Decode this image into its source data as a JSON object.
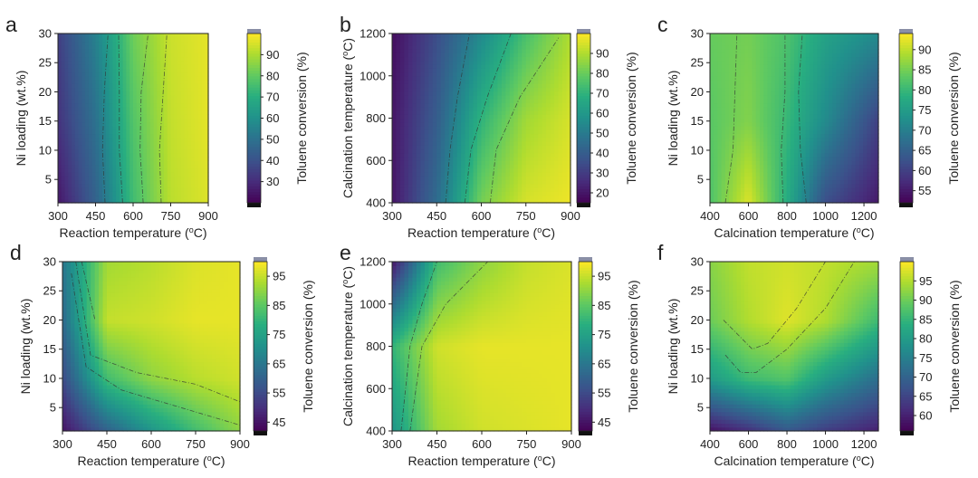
{
  "chart_data": [
    {
      "panel": "a",
      "type": "heatmap",
      "xlabel": "Reaction temperature (°C)",
      "ylabel": "Ni loading (wt.%)",
      "cbar_label": "Toluene conversion (%)",
      "xlim": [
        300,
        900
      ],
      "ylim": [
        1,
        30
      ],
      "xticks": [
        300,
        450,
        600,
        750,
        900
      ],
      "yticks": [
        5,
        10,
        15,
        20,
        25,
        30
      ],
      "cbar_range": [
        20,
        100
      ],
      "cbar_ticks": [
        30,
        40,
        50,
        60,
        70,
        80,
        90
      ],
      "x": [
        300,
        450,
        600,
        750,
        900
      ],
      "y": [
        1,
        15,
        30
      ],
      "values": [
        [
          25,
          45,
          75,
          92,
          96
        ],
        [
          32,
          50,
          78,
          93,
          97
        ],
        [
          35,
          55,
          82,
          94,
          97
        ]
      ],
      "contours": [
        {
          "x": [
            488,
            478,
            485,
            500
          ],
          "y": [
            1,
            10,
            20,
            30
          ]
        },
        {
          "x": [
            558,
            545,
            545,
            542
          ],
          "y": [
            1,
            10,
            20,
            30
          ]
        },
        {
          "x": [
            640,
            628,
            632,
            660
          ],
          "y": [
            1,
            10,
            20,
            30
          ]
        },
        {
          "x": [
            712,
            705,
            720,
            735
          ],
          "y": [
            1,
            10,
            20,
            30
          ]
        }
      ]
    },
    {
      "panel": "b",
      "type": "heatmap",
      "xlabel": "Reaction temperature (°C)",
      "ylabel": "Calcination temperature (°C)",
      "cbar_label": "Toluene conversion (%)",
      "xlim": [
        300,
        900
      ],
      "ylim": [
        400,
        1200
      ],
      "xticks": [
        300,
        450,
        600,
        750,
        900
      ],
      "yticks": [
        400,
        600,
        800,
        1000,
        1200
      ],
      "cbar_range": [
        15,
        100
      ],
      "cbar_ticks": [
        20,
        30,
        40,
        50,
        60,
        70,
        80,
        90
      ],
      "x": [
        300,
        450,
        600,
        750,
        900
      ],
      "y": [
        400,
        800,
        1200
      ],
      "values": [
        [
          20,
          45,
          82,
          95,
          98
        ],
        [
          20,
          40,
          70,
          88,
          95
        ],
        [
          18,
          35,
          55,
          75,
          90
        ]
      ],
      "contours": [
        {
          "x": [
            480,
            495,
            520,
            560
          ],
          "y": [
            400,
            650,
            900,
            1200
          ]
        },
        {
          "x": [
            545,
            565,
            620,
            700
          ],
          "y": [
            400,
            650,
            900,
            1200
          ]
        },
        {
          "x": [
            630,
            650,
            730,
            860
          ],
          "y": [
            400,
            650,
            900,
            1180
          ]
        }
      ]
    },
    {
      "panel": "c",
      "type": "heatmap",
      "xlabel": "Calcination temperature (°C)",
      "ylabel": "Ni loading (wt.%)",
      "cbar_label": "Toluene conversion (%)",
      "xlim": [
        400,
        1275
      ],
      "ylim": [
        1,
        30
      ],
      "xticks": [
        400,
        600,
        800,
        1000,
        1200
      ],
      "yticks": [
        5,
        10,
        15,
        20,
        25,
        30
      ],
      "cbar_range": [
        52,
        94
      ],
      "cbar_ticks": [
        55,
        60,
        65,
        70,
        75,
        80,
        85,
        90
      ],
      "x": [
        400,
        600,
        800,
        1000,
        1275
      ],
      "y": [
        1,
        15,
        30
      ],
      "values": [
        [
          82,
          92,
          78,
          62,
          55
        ],
        [
          83,
          86,
          80,
          72,
          60
        ],
        [
          84,
          85,
          82,
          76,
          72
        ]
      ],
      "contours": [
        {
          "x": [
            480,
            520,
            530,
            540
          ],
          "y": [
            1,
            10,
            20,
            30
          ]
        },
        {
          "x": [
            780,
            770,
            790,
            790
          ],
          "y": [
            1,
            10,
            20,
            30
          ]
        },
        {
          "x": [
            900,
            870,
            860,
            880
          ],
          "y": [
            1,
            10,
            20,
            30
          ]
        }
      ]
    },
    {
      "panel": "d",
      "type": "heatmap",
      "xlabel": "Reaction temperature (°C)",
      "ylabel": "Ni loading (wt.%)",
      "cbar_label": "Toluene conversion (%)",
      "xlim": [
        300,
        900
      ],
      "ylim": [
        1,
        30
      ],
      "xticks": [
        300,
        450,
        600,
        750,
        900
      ],
      "yticks": [
        5,
        10,
        15,
        20,
        25,
        30
      ],
      "cbar_range": [
        42,
        100
      ],
      "cbar_ticks": [
        45,
        55,
        65,
        75,
        85,
        95
      ],
      "x": [
        300,
        450,
        600,
        750,
        900
      ],
      "y": [
        1,
        10,
        20,
        30
      ],
      "values": [
        [
          45,
          60,
          72,
          82,
          90
        ],
        [
          55,
          82,
          90,
          94,
          96
        ],
        [
          62,
          95,
          96,
          98,
          98
        ],
        [
          65,
          92,
          94,
          97,
          98
        ]
      ],
      "contours": [
        {
          "x": [
            330,
            380,
            500,
            700,
            900
          ],
          "y": [
            28,
            12,
            8,
            5,
            2
          ]
        },
        {
          "x": [
            345,
            395,
            550,
            750,
            900
          ],
          "y": [
            30,
            14,
            11,
            9,
            6
          ]
        },
        {
          "x": [
            365,
            410
          ],
          "y": [
            30,
            20
          ]
        }
      ]
    },
    {
      "panel": "e",
      "type": "heatmap",
      "xlabel": "Reaction temperature (°C)",
      "ylabel": "Calcination temperature (°C)",
      "cbar_label": "Toluene conversion (%)",
      "xlim": [
        300,
        900
      ],
      "ylim": [
        400,
        1200
      ],
      "xticks": [
        300,
        450,
        600,
        750,
        900
      ],
      "yticks": [
        400,
        600,
        800,
        1000,
        1200
      ],
      "cbar_range": [
        42,
        100
      ],
      "cbar_ticks": [
        45,
        55,
        65,
        75,
        85,
        95
      ],
      "x": [
        300,
        450,
        600,
        750,
        900
      ],
      "y": [
        400,
        800,
        1200
      ],
      "values": [
        [
          72,
          92,
          96,
          97,
          98
        ],
        [
          80,
          96,
          98,
          98,
          98
        ],
        [
          45,
          82,
          90,
          95,
          97
        ]
      ],
      "contours": [
        {
          "x": [
            330,
            345,
            360,
            400,
            450
          ],
          "y": [
            400,
            600,
            800,
            1000,
            1200
          ]
        },
        {
          "x": [
            360,
            380,
            400,
            480,
            620
          ],
          "y": [
            400,
            600,
            800,
            1000,
            1200
          ]
        }
      ]
    },
    {
      "panel": "f",
      "type": "heatmap",
      "xlabel": "Calcination temperature (°C)",
      "ylabel": "Ni loading (wt.%)",
      "cbar_label": "Toluene conversion (%)",
      "xlim": [
        400,
        1275
      ],
      "ylim": [
        1,
        30
      ],
      "xticks": [
        400,
        600,
        800,
        1000,
        1200
      ],
      "yticks": [
        5,
        10,
        15,
        20,
        25,
        30
      ],
      "cbar_range": [
        56,
        100
      ],
      "cbar_ticks": [
        60,
        65,
        70,
        75,
        80,
        85,
        90,
        95
      ],
      "x": [
        400,
        600,
        800,
        1000,
        1275
      ],
      "y": [
        1,
        10,
        20,
        30
      ],
      "values": [
        [
          58,
          62,
          68,
          64,
          60
        ],
        [
          80,
          86,
          88,
          80,
          72
        ],
        [
          90,
          95,
          98,
          95,
          86
        ],
        [
          92,
          96,
          97,
          96,
          94
        ]
      ],
      "contours": [
        {
          "x": [
            480,
            560,
            640,
            800,
            1000,
            1150
          ],
          "y": [
            14,
            11,
            11,
            15,
            22,
            30
          ]
        },
        {
          "x": [
            470,
            620,
            700,
            850,
            1000
          ],
          "y": [
            20,
            15,
            16,
            22,
            30
          ]
        }
      ]
    }
  ]
}
